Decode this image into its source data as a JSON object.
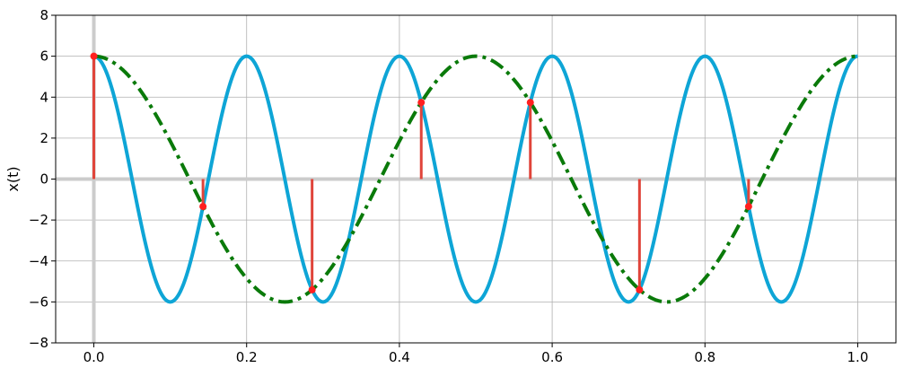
{
  "chart_data": {
    "type": "line",
    "title": "",
    "xlabel": "",
    "ylabel": "x(t)",
    "xlim": [
      -0.05,
      1.05
    ],
    "ylim": [
      -8,
      8
    ],
    "xticks": [
      0.0,
      0.2,
      0.4,
      0.6,
      0.8,
      1.0
    ],
    "xtick_labels": [
      "0.0",
      "0.2",
      "0.4",
      "0.6",
      "0.8",
      "1.0"
    ],
    "yticks": [
      -8,
      -6,
      -4,
      -2,
      0,
      2,
      4,
      6,
      8
    ],
    "ytick_labels": [
      "−8",
      "−6",
      "−4",
      "−2",
      "0",
      "2",
      "4",
      "6",
      "8"
    ],
    "grid": true,
    "series": [
      {
        "style": "solid",
        "color": "#0ea5d6",
        "amplitude": 6,
        "frequency": 5
      },
      {
        "style": "dashdot",
        "color": "#0a7a0a",
        "amplitude": 6,
        "frequency": 2
      },
      {
        "style": "stem",
        "color": "#e0443a",
        "x": [
          0.0,
          0.1429,
          0.2857,
          0.4286,
          0.5714,
          0.7143,
          0.8571
        ],
        "y": [
          6.0,
          -1.34,
          -5.41,
          3.74,
          3.74,
          -5.41,
          -1.34
        ]
      }
    ],
    "zero_lines_color": "#cccccc"
  }
}
